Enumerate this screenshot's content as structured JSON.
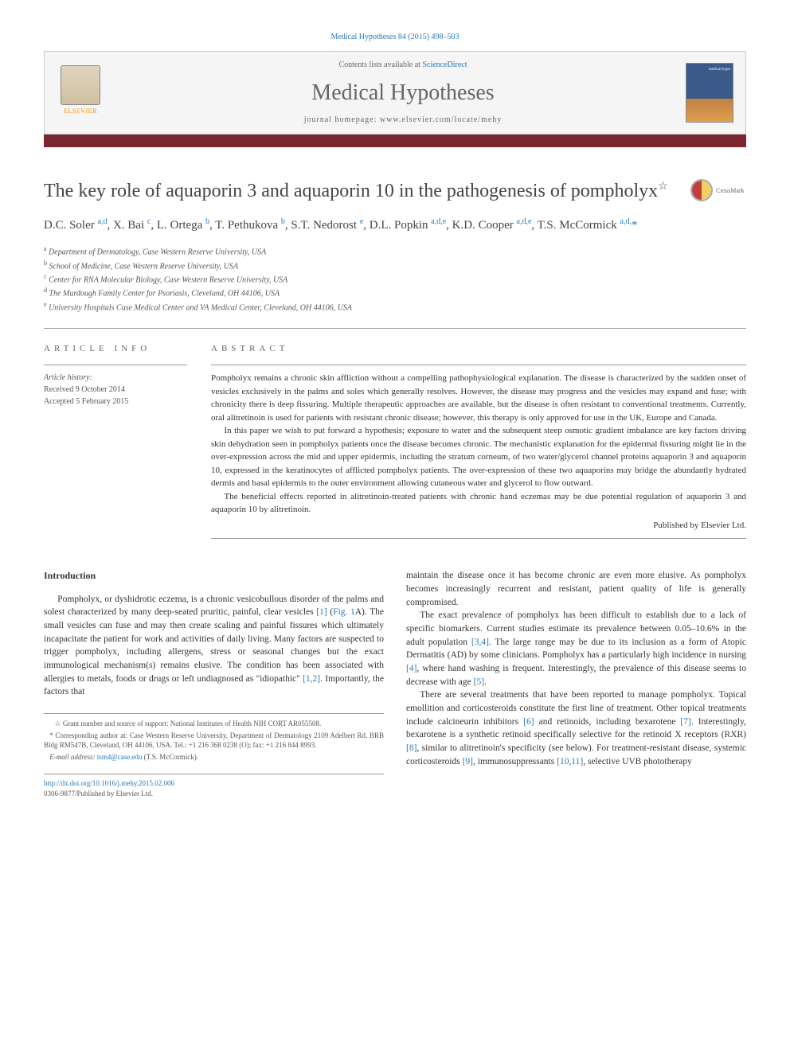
{
  "citation": "Medical Hypotheses 84 (2015) 498–503",
  "header": {
    "contents_prefix": "Contents lists available at ",
    "contents_link": "ScienceDirect",
    "journal_name": "Medical Hypotheses",
    "homepage_prefix": "journal homepage: ",
    "homepage_url": "www.elsevier.com/locate/mehy",
    "publisher_label": "ELSEVIER",
    "cover_label": "medical hypo"
  },
  "crossmark_label": "CrossMark",
  "title": "The key role of aquaporin 3 and aquaporin 10 in the pathogenesis of pompholyx",
  "title_note_marker": "☆",
  "authors_html": "D.C. Soler <sup>a,d</sup>, X. Bai <sup>c</sup>, L. Ortega <sup>b</sup>, T. Pethukova <sup>b</sup>, S.T. Nedorost <sup>e</sup>, D.L. Popkin <sup>a,d,e</sup>, K.D. Cooper <sup>a,d,e</sup>, T.S. McCormick <sup>a,d,</sup><span class='corr'>*</span>",
  "affiliations": [
    {
      "sup": "a",
      "text": "Department of Dermatology, Case Western Reserve University, USA"
    },
    {
      "sup": "b",
      "text": "School of Medicine, Case Western Reserve University, USA"
    },
    {
      "sup": "c",
      "text": "Center for RNA Molecular Biology, Case Western Reserve University, USA"
    },
    {
      "sup": "d",
      "text": "The Murdough Family Center for Psoriasis, Cleveland, OH 44106, USA"
    },
    {
      "sup": "e",
      "text": "University Hospitals Case Medical Center and VA Medical Center, Cleveland, OH 44106, USA"
    }
  ],
  "info": {
    "label": "ARTICLE INFO",
    "history_heading": "Article history:",
    "received": "Received 9 October 2014",
    "accepted": "Accepted 5 February 2015"
  },
  "abstract": {
    "label": "ABSTRACT",
    "paragraphs": [
      "Pompholyx remains a chronic skin affliction without a compelling pathophysiological explanation. The disease is characterized by the sudden onset of vesicles exclusively in the palms and soles which generally resolves. However, the disease may progress and the vesicles may expand and fuse; with chronicity there is deep fissuring. Multiple therapeutic approaches are available, but the disease is often resistant to conventional treatments. Currently, oral alitretinoin is used for patients with resistant chronic disease; however, this therapy is only approved for use in the UK, Europe and Canada.",
      "In this paper we wish to put forward a hypothesis; exposure to water and the subsequent steep osmotic gradient imbalance are key factors driving skin dehydration seen in pompholyx patients once the disease becomes chronic. The mechanistic explanation for the epidermal fissuring might lie in the over-expression across the mid and upper epidermis, including the stratum corneum, of two water/glycerol channel proteins aquaporin 3 and aquaporin 10, expressed in the keratinocytes of afflicted pompholyx patients. The over-expression of these two aquaporins may bridge the abundantly hydrated dermis and basal epidermis to the outer environment allowing cutaneous water and glycerol to flow outward.",
      "The beneficial effects reported in alitretinoin-treated patients with chronic hand eczemas may be due potential regulation of aquaporin 3 and aquaporin 10 by alitretinoin."
    ],
    "publisher": "Published by Elsevier Ltd."
  },
  "body": {
    "heading": "Introduction",
    "left_paragraphs": [
      "Pompholyx, or dyshidrotic eczema, is a chronic vesicobullous disorder of the palms and solest characterized by many deep-seated pruritic, painful, clear vesicles <span class='ref-link'>[1]</span> (<span class='ref-link'>Fig. 1</span>A). The small vesicles can fuse and may then create scaling and painful fissures which ultimately incapacitate the patient for work and activities of daily living. Many factors are suspected to trigger pompholyx, including allergens, stress or seasonal changes but the exact immunological mechanism(s) remains elusive. The condition has been associated with allergies to metals, foods or drugs or left undiagnosed as \"idiopathic\" <span class='ref-link'>[1,2]</span>. Importantly, the factors that"
    ],
    "right_paragraphs": [
      "maintain the disease once it has become chronic are even more elusive. As pompholyx becomes increasingly recurrent and resistant, patient quality of life is generally compromised.",
      "The exact prevalence of pompholyx has been difficult to establish due to a lack of specific biomarkers. Current studies estimate its prevalence between 0.05–10.6% in the adult population <span class='ref-link'>[3,4]</span>. The large range may be due to its inclusion as a form of Atopic Dermatitis (AD) by some clinicians. Pompholyx has a particularly high incidence in nursing <span class='ref-link'>[4]</span>, where hand washing is frequent. Interestingly, the prevalence of this disease seems to decrease with age <span class='ref-link'>[5]</span>.",
      "There are several treatments that have been reported to manage pompholyx. Topical emollition and corticosteroids constitute the first line of treatment. Other topical treatments include calcineurin inhibitors <span class='ref-link'>[6]</span> and retinoids, including bexarotene <span class='ref-link'>[7]</span>. Interestingly, bexarotene is a synthetic retinoid specifically selective for the retinoid X receptors (RXR) <span class='ref-link'>[8]</span>, similar to alitretinoin's specificity (see below). For treatment-resistant disease, systemic corticosteroids <span class='ref-link'>[9]</span>, immunosuppressants <span class='ref-link'>[10,11]</span>, selective UVB phototherapy"
    ]
  },
  "footnotes": {
    "grant": "☆ Grant number and source of support: National Institutes of Health NIH CORT AR055508.",
    "corr": "* Corresponding author at: Case Western Reserve University, Department of Dermatology 2109 Adelbert Rd, BRB Bldg RM547B, Cleveland, OH 44106, USA. Tel.: +1 216 368 0238 (O); fax: +1 216 844 8993.",
    "email_label": "E-mail address: ",
    "email": "tsm4@case.edu",
    "email_suffix": " (T.S. McCormick)."
  },
  "footer": {
    "doi": "http://dx.doi.org/10.1016/j.mehy.2015.02.006",
    "copyright": "0306-9877/Published by Elsevier Ltd."
  },
  "colors": {
    "link": "#2878b8",
    "burgundy": "#7a2530",
    "text": "#333333",
    "muted": "#666666"
  }
}
